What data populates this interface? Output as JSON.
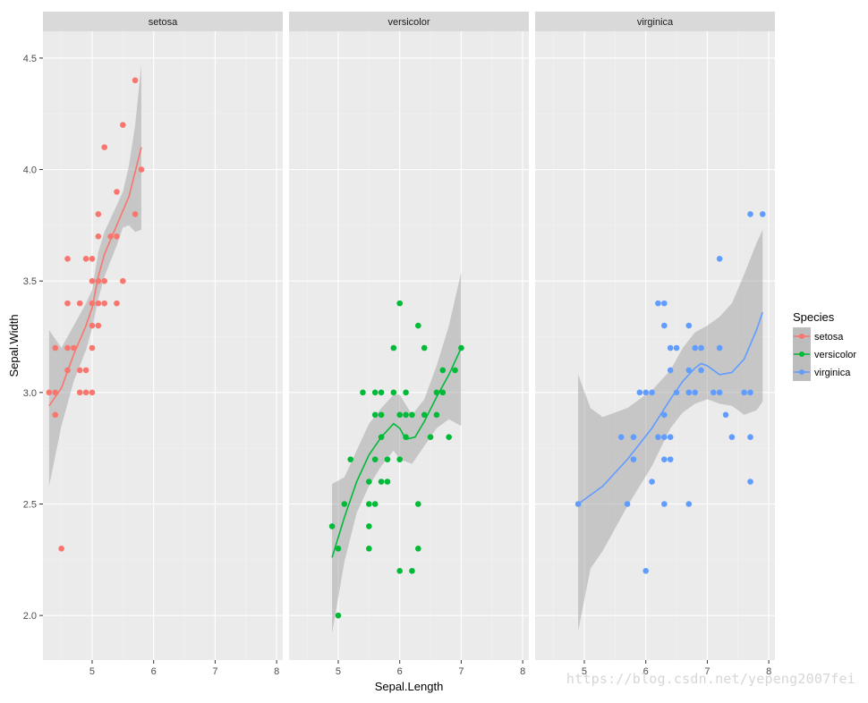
{
  "chart_data": {
    "type": "scatter",
    "subtype": "faceted-scatter-with-smooth-ribbon",
    "xlabel": "Sepal.Length",
    "ylabel": "Sepal.Width",
    "xlim": [
      4.2,
      8.1
    ],
    "ylim": [
      1.8,
      4.62
    ],
    "x_ticks": [
      5,
      6,
      7,
      8
    ],
    "y_ticks": [
      2.0,
      2.5,
      3.0,
      3.5,
      4.0,
      4.5
    ],
    "y_tick_labels": [
      "2.0",
      "2.5",
      "3.0",
      "3.5",
      "4.0",
      "4.5"
    ],
    "grid": true,
    "legend": {
      "title": "Species",
      "position": "right",
      "entries": [
        "setosa",
        "versicolor",
        "virginica"
      ]
    },
    "facets": [
      {
        "name": "setosa",
        "color": "#F8766D",
        "points": [
          [
            4.3,
            3.0
          ],
          [
            4.4,
            2.9
          ],
          [
            4.4,
            3.0
          ],
          [
            4.4,
            3.2
          ],
          [
            4.5,
            2.3
          ],
          [
            4.6,
            3.1
          ],
          [
            4.6,
            3.2
          ],
          [
            4.6,
            3.4
          ],
          [
            4.6,
            3.6
          ],
          [
            4.7,
            3.2
          ],
          [
            4.8,
            3.0
          ],
          [
            4.8,
            3.1
          ],
          [
            4.8,
            3.4
          ],
          [
            4.9,
            3.0
          ],
          [
            4.9,
            3.1
          ],
          [
            4.9,
            3.6
          ],
          [
            5.0,
            3.0
          ],
          [
            5.0,
            3.2
          ],
          [
            5.0,
            3.3
          ],
          [
            5.0,
            3.4
          ],
          [
            5.0,
            3.5
          ],
          [
            5.0,
            3.6
          ],
          [
            5.1,
            3.3
          ],
          [
            5.1,
            3.4
          ],
          [
            5.1,
            3.5
          ],
          [
            5.1,
            3.7
          ],
          [
            5.1,
            3.8
          ],
          [
            5.2,
            3.4
          ],
          [
            5.2,
            3.5
          ],
          [
            5.2,
            4.1
          ],
          [
            5.3,
            3.7
          ],
          [
            5.4,
            3.4
          ],
          [
            5.4,
            3.7
          ],
          [
            5.4,
            3.9
          ],
          [
            5.5,
            3.5
          ],
          [
            5.5,
            4.2
          ],
          [
            5.7,
            3.8
          ],
          [
            5.7,
            4.4
          ],
          [
            5.8,
            4.0
          ]
        ],
        "smooth": [
          [
            4.3,
            2.94
          ],
          [
            4.5,
            3.02
          ],
          [
            4.7,
            3.17
          ],
          [
            4.9,
            3.3
          ],
          [
            5.0,
            3.38
          ],
          [
            5.1,
            3.52
          ],
          [
            5.2,
            3.62
          ],
          [
            5.4,
            3.75
          ],
          [
            5.6,
            3.88
          ],
          [
            5.8,
            4.1
          ]
        ],
        "ribbon_upper": [
          [
            4.3,
            3.28
          ],
          [
            4.5,
            3.2
          ],
          [
            4.7,
            3.3
          ],
          [
            4.9,
            3.4
          ],
          [
            5.0,
            3.46
          ],
          [
            5.1,
            3.63
          ],
          [
            5.2,
            3.72
          ],
          [
            5.4,
            3.84
          ],
          [
            5.5,
            3.9
          ],
          [
            5.6,
            4.02
          ],
          [
            5.7,
            4.2
          ],
          [
            5.8,
            4.47
          ]
        ],
        "ribbon_lower": [
          [
            4.3,
            2.58
          ],
          [
            4.5,
            2.85
          ],
          [
            4.7,
            3.05
          ],
          [
            4.9,
            3.19
          ],
          [
            5.0,
            3.29
          ],
          [
            5.1,
            3.42
          ],
          [
            5.2,
            3.52
          ],
          [
            5.4,
            3.66
          ],
          [
            5.5,
            3.74
          ],
          [
            5.6,
            3.75
          ],
          [
            5.7,
            3.72
          ],
          [
            5.8,
            3.73
          ]
        ]
      },
      {
        "name": "versicolor",
        "color": "#00BA38",
        "points": [
          [
            4.9,
            2.4
          ],
          [
            5.0,
            2.0
          ],
          [
            5.0,
            2.3
          ],
          [
            5.1,
            2.5
          ],
          [
            5.2,
            2.7
          ],
          [
            5.4,
            3.0
          ],
          [
            5.5,
            2.3
          ],
          [
            5.5,
            2.4
          ],
          [
            5.5,
            2.5
          ],
          [
            5.5,
            2.6
          ],
          [
            5.6,
            2.5
          ],
          [
            5.6,
            2.7
          ],
          [
            5.6,
            2.9
          ],
          [
            5.6,
            3.0
          ],
          [
            5.7,
            2.6
          ],
          [
            5.7,
            2.8
          ],
          [
            5.7,
            2.9
          ],
          [
            5.7,
            3.0
          ],
          [
            5.8,
            2.6
          ],
          [
            5.8,
            2.7
          ],
          [
            5.9,
            3.0
          ],
          [
            5.9,
            3.2
          ],
          [
            6.0,
            2.2
          ],
          [
            6.0,
            2.7
          ],
          [
            6.0,
            2.9
          ],
          [
            6.0,
            3.4
          ],
          [
            6.1,
            2.8
          ],
          [
            6.1,
            2.9
          ],
          [
            6.1,
            3.0
          ],
          [
            6.2,
            2.2
          ],
          [
            6.2,
            2.9
          ],
          [
            6.3,
            2.3
          ],
          [
            6.3,
            2.5
          ],
          [
            6.3,
            3.3
          ],
          [
            6.4,
            2.9
          ],
          [
            6.4,
            3.2
          ],
          [
            6.5,
            2.8
          ],
          [
            6.6,
            2.9
          ],
          [
            6.6,
            3.0
          ],
          [
            6.7,
            3.0
          ],
          [
            6.7,
            3.1
          ],
          [
            6.8,
            2.8
          ],
          [
            6.9,
            3.1
          ],
          [
            7.0,
            3.2
          ]
        ],
        "smooth": [
          [
            4.9,
            2.26
          ],
          [
            5.1,
            2.44
          ],
          [
            5.3,
            2.6
          ],
          [
            5.5,
            2.72
          ],
          [
            5.7,
            2.8
          ],
          [
            5.9,
            2.86
          ],
          [
            6.0,
            2.84
          ],
          [
            6.1,
            2.79
          ],
          [
            6.25,
            2.8
          ],
          [
            6.4,
            2.87
          ],
          [
            6.6,
            2.98
          ],
          [
            6.8,
            3.08
          ],
          [
            7.0,
            3.2
          ]
        ],
        "ribbon_upper": [
          [
            4.9,
            2.59
          ],
          [
            5.1,
            2.62
          ],
          [
            5.3,
            2.74
          ],
          [
            5.5,
            2.86
          ],
          [
            5.7,
            2.93
          ],
          [
            5.9,
            2.99
          ],
          [
            6.0,
            2.99
          ],
          [
            6.2,
            2.9
          ],
          [
            6.4,
            2.97
          ],
          [
            6.6,
            3.12
          ],
          [
            6.8,
            3.3
          ],
          [
            7.0,
            3.54
          ]
        ],
        "ribbon_lower": [
          [
            4.9,
            1.92
          ],
          [
            5.1,
            2.24
          ],
          [
            5.3,
            2.46
          ],
          [
            5.5,
            2.58
          ],
          [
            5.7,
            2.67
          ],
          [
            5.9,
            2.74
          ],
          [
            6.0,
            2.7
          ],
          [
            6.2,
            2.68
          ],
          [
            6.4,
            2.76
          ],
          [
            6.6,
            2.84
          ],
          [
            6.8,
            2.88
          ],
          [
            7.0,
            2.85
          ]
        ]
      },
      {
        "name": "virginica",
        "color": "#619CFF",
        "points": [
          [
            4.9,
            2.5
          ],
          [
            5.6,
            2.8
          ],
          [
            5.7,
            2.5
          ],
          [
            5.8,
            2.7
          ],
          [
            5.8,
            2.8
          ],
          [
            5.9,
            3.0
          ],
          [
            6.0,
            2.2
          ],
          [
            6.0,
            3.0
          ],
          [
            6.1,
            2.6
          ],
          [
            6.1,
            3.0
          ],
          [
            6.2,
            2.8
          ],
          [
            6.2,
            3.4
          ],
          [
            6.3,
            2.5
          ],
          [
            6.3,
            2.7
          ],
          [
            6.3,
            2.8
          ],
          [
            6.3,
            2.9
          ],
          [
            6.3,
            3.3
          ],
          [
            6.3,
            3.4
          ],
          [
            6.4,
            2.7
          ],
          [
            6.4,
            2.8
          ],
          [
            6.4,
            3.1
          ],
          [
            6.4,
            3.2
          ],
          [
            6.5,
            3.0
          ],
          [
            6.5,
            3.2
          ],
          [
            6.7,
            2.5
          ],
          [
            6.7,
            3.0
          ],
          [
            6.7,
            3.1
          ],
          [
            6.7,
            3.3
          ],
          [
            6.8,
            3.0
          ],
          [
            6.8,
            3.2
          ],
          [
            6.9,
            3.1
          ],
          [
            6.9,
            3.2
          ],
          [
            7.1,
            3.0
          ],
          [
            7.2,
            3.0
          ],
          [
            7.2,
            3.2
          ],
          [
            7.2,
            3.6
          ],
          [
            7.3,
            2.9
          ],
          [
            7.4,
            2.8
          ],
          [
            7.6,
            3.0
          ],
          [
            7.7,
            2.6
          ],
          [
            7.7,
            2.8
          ],
          [
            7.7,
            3.0
          ],
          [
            7.7,
            3.8
          ],
          [
            7.9,
            3.8
          ]
        ],
        "smooth": [
          [
            4.9,
            2.5
          ],
          [
            5.3,
            2.58
          ],
          [
            5.7,
            2.7
          ],
          [
            6.1,
            2.84
          ],
          [
            6.4,
            2.97
          ],
          [
            6.6,
            3.05
          ],
          [
            6.8,
            3.11
          ],
          [
            6.9,
            3.13
          ],
          [
            7.0,
            3.12
          ],
          [
            7.2,
            3.08
          ],
          [
            7.4,
            3.09
          ],
          [
            7.6,
            3.15
          ],
          [
            7.8,
            3.28
          ],
          [
            7.9,
            3.36
          ]
        ],
        "ribbon_upper": [
          [
            4.9,
            3.08
          ],
          [
            5.1,
            2.93
          ],
          [
            5.3,
            2.89
          ],
          [
            5.7,
            2.93
          ],
          [
            6.1,
            3.01
          ],
          [
            6.4,
            3.1
          ],
          [
            6.6,
            3.2
          ],
          [
            6.8,
            3.27
          ],
          [
            7.0,
            3.3
          ],
          [
            7.2,
            3.34
          ],
          [
            7.4,
            3.4
          ],
          [
            7.6,
            3.53
          ],
          [
            7.8,
            3.67
          ],
          [
            7.9,
            3.73
          ]
        ],
        "ribbon_lower": [
          [
            4.9,
            1.93
          ],
          [
            5.1,
            2.21
          ],
          [
            5.3,
            2.29
          ],
          [
            5.7,
            2.49
          ],
          [
            6.1,
            2.67
          ],
          [
            6.4,
            2.84
          ],
          [
            6.6,
            2.91
          ],
          [
            6.8,
            2.95
          ],
          [
            7.0,
            2.97
          ],
          [
            7.2,
            2.95
          ],
          [
            7.4,
            2.94
          ],
          [
            7.6,
            2.9
          ],
          [
            7.8,
            2.92
          ],
          [
            7.9,
            2.96
          ]
        ]
      }
    ]
  },
  "watermark": "https://blog.csdn.net/yepeng2007fei"
}
